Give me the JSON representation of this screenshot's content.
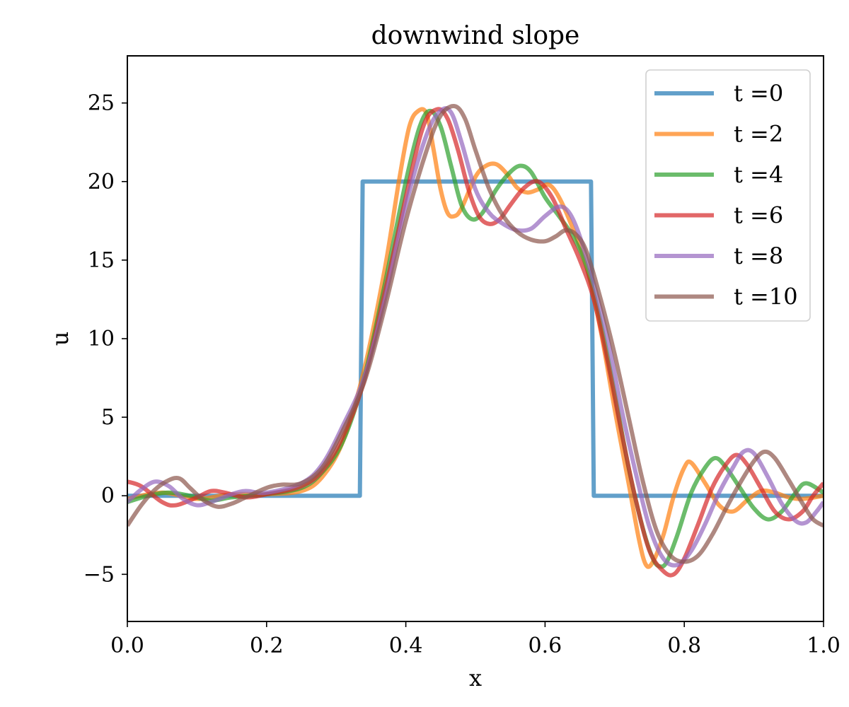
{
  "chart_data": {
    "type": "line",
    "title": "downwind slope",
    "xlabel": "x",
    "ylabel": "u",
    "xlim": [
      0.0,
      1.0
    ],
    "ylim": [
      -8,
      28
    ],
    "x_ticks": [
      0.0,
      0.2,
      0.4,
      0.6,
      0.8,
      1.0
    ],
    "x_tick_labels": [
      "0.0",
      "0.2",
      "0.4",
      "0.6",
      "0.8",
      "1.0"
    ],
    "y_ticks": [
      -5,
      0,
      5,
      10,
      15,
      20,
      25
    ],
    "y_tick_labels": [
      "−5",
      "0",
      "5",
      "10",
      "15",
      "20",
      "25"
    ],
    "grid": false,
    "legend_position": "top-right",
    "series": [
      {
        "name": "t =0",
        "color": "#1f77b4",
        "points": [
          [
            0.0,
            0
          ],
          [
            0.334,
            0
          ],
          [
            0.338,
            20
          ],
          [
            0.666,
            20
          ],
          [
            0.67,
            0
          ],
          [
            1.0,
            0
          ]
        ]
      },
      {
        "name": "t =2",
        "color": "#ff7f0e",
        "points": [
          [
            0.0,
            -0.2
          ],
          [
            0.05,
            0.2
          ],
          [
            0.1,
            -0.2
          ],
          [
            0.15,
            0.1
          ],
          [
            0.2,
            0.1
          ],
          [
            0.25,
            0.3
          ],
          [
            0.28,
            1.2
          ],
          [
            0.31,
            3.5
          ],
          [
            0.34,
            8.0
          ],
          [
            0.37,
            14.5
          ],
          [
            0.39,
            20.0
          ],
          [
            0.405,
            23.5
          ],
          [
            0.418,
            24.5
          ],
          [
            0.43,
            24.3
          ],
          [
            0.44,
            22.0
          ],
          [
            0.45,
            19.5
          ],
          [
            0.46,
            18.0
          ],
          [
            0.47,
            17.8
          ],
          [
            0.48,
            18.3
          ],
          [
            0.5,
            20.3
          ],
          [
            0.515,
            21.0
          ],
          [
            0.53,
            21.1
          ],
          [
            0.545,
            20.5
          ],
          [
            0.56,
            19.6
          ],
          [
            0.575,
            19.3
          ],
          [
            0.59,
            19.5
          ],
          [
            0.605,
            19.8
          ],
          [
            0.62,
            19.0
          ],
          [
            0.64,
            17.0
          ],
          [
            0.66,
            14.5
          ],
          [
            0.68,
            10.5
          ],
          [
            0.7,
            5.5
          ],
          [
            0.72,
            0.8
          ],
          [
            0.735,
            -2.8
          ],
          [
            0.745,
            -4.4
          ],
          [
            0.755,
            -4.2
          ],
          [
            0.77,
            -2.5
          ],
          [
            0.785,
            0.0
          ],
          [
            0.8,
            1.8
          ],
          [
            0.81,
            2.1
          ],
          [
            0.83,
            0.8
          ],
          [
            0.85,
            -0.6
          ],
          [
            0.87,
            -1.0
          ],
          [
            0.89,
            -0.3
          ],
          [
            0.91,
            0.3
          ],
          [
            0.93,
            0.2
          ],
          [
            0.95,
            -0.1
          ],
          [
            0.97,
            -0.2
          ],
          [
            1.0,
            0.0
          ]
        ]
      },
      {
        "name": "t =4",
        "color": "#2ca02c",
        "points": [
          [
            0.0,
            -0.4
          ],
          [
            0.03,
            0.0
          ],
          [
            0.06,
            0.2
          ],
          [
            0.09,
            0.0
          ],
          [
            0.12,
            -0.3
          ],
          [
            0.15,
            -0.1
          ],
          [
            0.2,
            0.1
          ],
          [
            0.25,
            0.5
          ],
          [
            0.28,
            1.5
          ],
          [
            0.31,
            3.5
          ],
          [
            0.34,
            7.5
          ],
          [
            0.37,
            13.5
          ],
          [
            0.4,
            20.0
          ],
          [
            0.42,
            23.5
          ],
          [
            0.435,
            24.5
          ],
          [
            0.45,
            23.5
          ],
          [
            0.465,
            21.0
          ],
          [
            0.48,
            18.5
          ],
          [
            0.495,
            17.6
          ],
          [
            0.51,
            18.0
          ],
          [
            0.53,
            19.5
          ],
          [
            0.55,
            20.6
          ],
          [
            0.565,
            21.0
          ],
          [
            0.58,
            20.6
          ],
          [
            0.6,
            19.0
          ],
          [
            0.62,
            17.8
          ],
          [
            0.64,
            16.5
          ],
          [
            0.66,
            14.5
          ],
          [
            0.68,
            11.0
          ],
          [
            0.7,
            6.5
          ],
          [
            0.72,
            1.8
          ],
          [
            0.74,
            -2.0
          ],
          [
            0.755,
            -4.0
          ],
          [
            0.765,
            -4.5
          ],
          [
            0.775,
            -4.2
          ],
          [
            0.79,
            -2.5
          ],
          [
            0.81,
            0.2
          ],
          [
            0.83,
            1.8
          ],
          [
            0.845,
            2.4
          ],
          [
            0.86,
            1.8
          ],
          [
            0.88,
            0.5
          ],
          [
            0.9,
            -0.8
          ],
          [
            0.92,
            -1.5
          ],
          [
            0.94,
            -1.0
          ],
          [
            0.96,
            0.2
          ],
          [
            0.975,
            0.8
          ],
          [
            1.0,
            0.2
          ]
        ]
      },
      {
        "name": "t =6",
        "color": "#d62728",
        "points": [
          [
            0.0,
            0.9
          ],
          [
            0.02,
            0.6
          ],
          [
            0.05,
            -0.4
          ],
          [
            0.07,
            -0.6
          ],
          [
            0.1,
            -0.1
          ],
          [
            0.12,
            0.3
          ],
          [
            0.14,
            0.2
          ],
          [
            0.17,
            -0.1
          ],
          [
            0.2,
            0.1
          ],
          [
            0.25,
            0.6
          ],
          [
            0.28,
            1.6
          ],
          [
            0.31,
            3.8
          ],
          [
            0.34,
            7.3
          ],
          [
            0.37,
            13.0
          ],
          [
            0.4,
            19.0
          ],
          [
            0.425,
            23.5
          ],
          [
            0.445,
            24.6
          ],
          [
            0.46,
            24.0
          ],
          [
            0.475,
            22.0
          ],
          [
            0.49,
            19.5
          ],
          [
            0.505,
            17.8
          ],
          [
            0.52,
            17.3
          ],
          [
            0.535,
            17.6
          ],
          [
            0.55,
            18.5
          ],
          [
            0.57,
            19.6
          ],
          [
            0.59,
            20.0
          ],
          [
            0.61,
            19.0
          ],
          [
            0.63,
            17.0
          ],
          [
            0.65,
            15.0
          ],
          [
            0.67,
            12.5
          ],
          [
            0.69,
            8.5
          ],
          [
            0.71,
            4.0
          ],
          [
            0.73,
            -0.2
          ],
          [
            0.75,
            -3.5
          ],
          [
            0.77,
            -4.8
          ],
          [
            0.785,
            -5.0
          ],
          [
            0.8,
            -4.0
          ],
          [
            0.82,
            -1.8
          ],
          [
            0.84,
            0.5
          ],
          [
            0.86,
            2.0
          ],
          [
            0.875,
            2.6
          ],
          [
            0.89,
            2.0
          ],
          [
            0.91,
            0.5
          ],
          [
            0.93,
            -1.0
          ],
          [
            0.95,
            -1.5
          ],
          [
            0.97,
            -1.0
          ],
          [
            0.985,
            0.0
          ],
          [
            1.0,
            0.8
          ]
        ]
      },
      {
        "name": "t =8",
        "color": "#9467bd",
        "points": [
          [
            0.0,
            -0.4
          ],
          [
            0.02,
            0.4
          ],
          [
            0.04,
            0.9
          ],
          [
            0.06,
            0.6
          ],
          [
            0.08,
            -0.2
          ],
          [
            0.1,
            -0.6
          ],
          [
            0.12,
            -0.4
          ],
          [
            0.15,
            0.1
          ],
          [
            0.17,
            0.3
          ],
          [
            0.2,
            0.2
          ],
          [
            0.25,
            0.8
          ],
          [
            0.28,
            2.0
          ],
          [
            0.31,
            4.5
          ],
          [
            0.34,
            7.5
          ],
          [
            0.37,
            12.5
          ],
          [
            0.4,
            18.5
          ],
          [
            0.43,
            23.0
          ],
          [
            0.45,
            24.5
          ],
          [
            0.465,
            24.4
          ],
          [
            0.48,
            22.5
          ],
          [
            0.5,
            19.5
          ],
          [
            0.52,
            18.0
          ],
          [
            0.54,
            17.3
          ],
          [
            0.56,
            16.9
          ],
          [
            0.58,
            17.0
          ],
          [
            0.6,
            17.8
          ],
          [
            0.62,
            18.4
          ],
          [
            0.635,
            18.0
          ],
          [
            0.65,
            16.5
          ],
          [
            0.67,
            13.5
          ],
          [
            0.69,
            10.0
          ],
          [
            0.71,
            5.5
          ],
          [
            0.73,
            1.5
          ],
          [
            0.75,
            -2.0
          ],
          [
            0.77,
            -4.0
          ],
          [
            0.79,
            -4.4
          ],
          [
            0.81,
            -3.5
          ],
          [
            0.83,
            -1.8
          ],
          [
            0.85,
            0.2
          ],
          [
            0.87,
            1.8
          ],
          [
            0.885,
            2.8
          ],
          [
            0.9,
            2.7
          ],
          [
            0.92,
            1.2
          ],
          [
            0.94,
            -0.5
          ],
          [
            0.96,
            -1.6
          ],
          [
            0.975,
            -1.7
          ],
          [
            0.99,
            -1.0
          ],
          [
            1.0,
            -0.4
          ]
        ]
      },
      {
        "name": "t =10",
        "color": "#8c564b",
        "points": [
          [
            0.0,
            -1.9
          ],
          [
            0.02,
            -0.6
          ],
          [
            0.04,
            0.4
          ],
          [
            0.06,
            1.0
          ],
          [
            0.075,
            1.1
          ],
          [
            0.09,
            0.5
          ],
          [
            0.11,
            -0.3
          ],
          [
            0.13,
            -0.7
          ],
          [
            0.15,
            -0.5
          ],
          [
            0.17,
            -0.1
          ],
          [
            0.2,
            0.5
          ],
          [
            0.22,
            0.7
          ],
          [
            0.25,
            0.8
          ],
          [
            0.28,
            1.8
          ],
          [
            0.31,
            4.2
          ],
          [
            0.34,
            7.2
          ],
          [
            0.37,
            12.0
          ],
          [
            0.4,
            17.5
          ],
          [
            0.43,
            22.0
          ],
          [
            0.45,
            24.2
          ],
          [
            0.47,
            24.8
          ],
          [
            0.485,
            24.0
          ],
          [
            0.5,
            22.0
          ],
          [
            0.52,
            19.5
          ],
          [
            0.54,
            17.8
          ],
          [
            0.56,
            16.8
          ],
          [
            0.58,
            16.3
          ],
          [
            0.6,
            16.2
          ],
          [
            0.615,
            16.5
          ],
          [
            0.63,
            16.9
          ],
          [
            0.645,
            16.6
          ],
          [
            0.66,
            15.5
          ],
          [
            0.68,
            12.5
          ],
          [
            0.7,
            9.0
          ],
          [
            0.72,
            5.0
          ],
          [
            0.74,
            1.0
          ],
          [
            0.76,
            -2.2
          ],
          [
            0.78,
            -3.8
          ],
          [
            0.8,
            -4.2
          ],
          [
            0.82,
            -3.8
          ],
          [
            0.84,
            -2.5
          ],
          [
            0.86,
            -0.8
          ],
          [
            0.88,
            0.8
          ],
          [
            0.9,
            2.2
          ],
          [
            0.915,
            2.8
          ],
          [
            0.93,
            2.4
          ],
          [
            0.95,
            1.0
          ],
          [
            0.97,
            -0.5
          ],
          [
            0.985,
            -1.5
          ],
          [
            1.0,
            -1.9
          ]
        ]
      }
    ]
  }
}
